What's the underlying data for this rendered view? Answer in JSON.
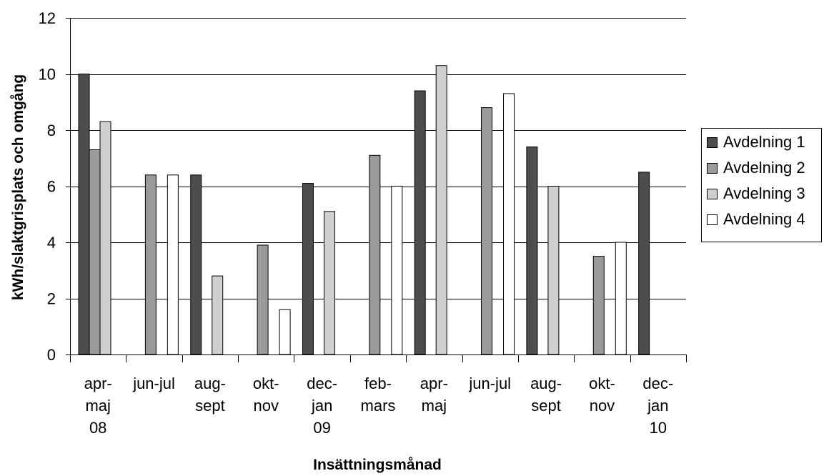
{
  "chart_data": {
    "type": "bar",
    "title": "",
    "xlabel": "Insättningsmånad",
    "ylabel": "kWh/slaktgrisplats och omgång",
    "ylim": [
      0,
      12
    ],
    "yticks": [
      0,
      2,
      4,
      6,
      8,
      10,
      12
    ],
    "grid": true,
    "legend_position": "right",
    "categories": [
      [
        "apr-",
        "maj",
        "08"
      ],
      [
        "jun-jul"
      ],
      [
        "aug-",
        "sept"
      ],
      [
        "okt-",
        "nov"
      ],
      [
        "dec-",
        "jan",
        "09"
      ],
      [
        "feb-",
        "mars"
      ],
      [
        "apr-",
        "maj"
      ],
      [
        "jun-jul"
      ],
      [
        "aug-",
        "sept"
      ],
      [
        "okt-",
        "nov"
      ],
      [
        "dec-",
        "jan",
        "10"
      ]
    ],
    "series": [
      {
        "name": "Avdelning 1",
        "color": "#4d4d4d",
        "values": [
          10.0,
          null,
          6.4,
          null,
          6.1,
          null,
          9.4,
          null,
          7.4,
          null,
          6.5
        ]
      },
      {
        "name": "Avdelning 2",
        "color": "#9a9a9a",
        "values": [
          7.3,
          6.4,
          null,
          3.9,
          null,
          7.1,
          null,
          8.8,
          null,
          3.5,
          null
        ]
      },
      {
        "name": "Avdelning 3",
        "color": "#cfcfcf",
        "values": [
          8.3,
          null,
          2.8,
          null,
          5.1,
          null,
          10.3,
          null,
          6.0,
          null,
          null
        ]
      },
      {
        "name": "Avdelning 4",
        "color": "#ffffff",
        "values": [
          null,
          6.4,
          null,
          1.6,
          null,
          6.0,
          null,
          9.3,
          null,
          4.0,
          null
        ]
      }
    ]
  }
}
